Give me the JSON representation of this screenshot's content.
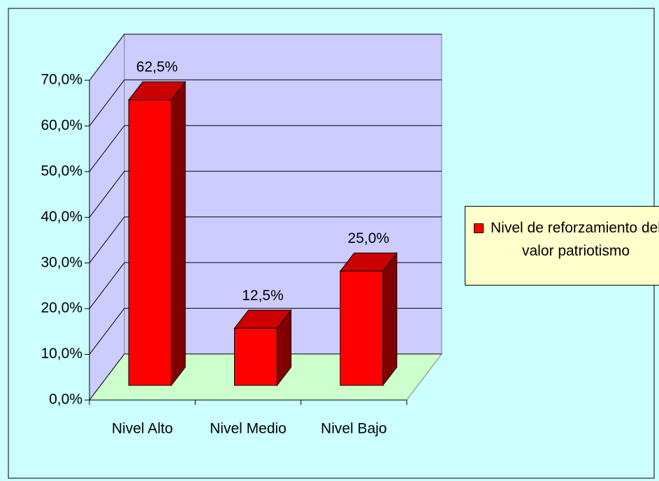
{
  "chart_data": {
    "type": "bar3d",
    "categories": [
      "Nivel Alto",
      "Nivel Medio",
      "Nivel Bajo"
    ],
    "series": [
      {
        "name": "Nivel de reforzamiento del valor patriotismo",
        "color": "#ff0000",
        "values": [
          62.5,
          12.5,
          25
        ],
        "value_labels": [
          "62,5%",
          "12,5%",
          "25,0%"
        ]
      }
    ],
    "ylim": [
      0,
      70
    ],
    "yticks": [
      {
        "value": 0,
        "label": "0,0%"
      },
      {
        "value": 10,
        "label": "10,0%"
      },
      {
        "value": 20,
        "label": "20,0%"
      },
      {
        "value": 30,
        "label": "30,0%"
      },
      {
        "value": 40,
        "label": "40,0%"
      },
      {
        "value": 50,
        "label": "50,0%"
      },
      {
        "value": 60,
        "label": "60,0%"
      },
      {
        "value": 70,
        "label": "70,0%"
      }
    ],
    "grid": true,
    "legend": "right"
  }
}
